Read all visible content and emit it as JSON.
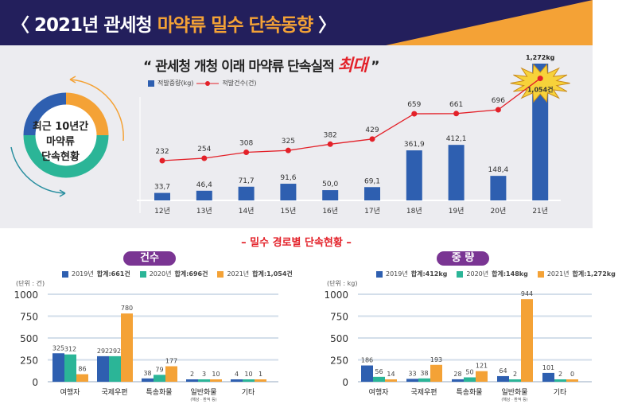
{
  "header": {
    "title_prefix": "〈 2021년 관세청 ",
    "title_highlight": "마약류 밀수 단속동향",
    "title_suffix": " 〉",
    "colors": {
      "navy": "#231f5c",
      "orange": "#f4a236"
    }
  },
  "top": {
    "quote_prefix": "“ 관세청 개청 이래 마약류 단속실적 ",
    "quote_highlight": "최대",
    "quote_suffix": " ”",
    "ring_lines": [
      "최근 10년간",
      "마약류",
      "단속현황"
    ],
    "legend": {
      "bar": "적발중량(kg)",
      "line": "적발건수(건)"
    },
    "burst_label": "1,054건",
    "top_bar_label": "1,272kg"
  },
  "chart_data": [
    {
      "type": "bar+line",
      "categories": [
        "12년",
        "13년",
        "14년",
        "15년",
        "16년",
        "17년",
        "18년",
        "19년",
        "20년",
        "21년"
      ],
      "series": [
        {
          "name": "적발중량(kg)",
          "type": "bar",
          "color": "#2e5fb0",
          "values": [
            33.7,
            46.4,
            71.7,
            91.6,
            50.0,
            69.1,
            361.9,
            412.1,
            148.4,
            1272
          ],
          "labels": [
            "33,7",
            "46,4",
            "71,7",
            "91,6",
            "50,0",
            "69,1",
            "361,9",
            "412,1",
            "148,4",
            "1,272kg"
          ]
        },
        {
          "name": "적발건수(건)",
          "type": "line",
          "color": "#e32129",
          "values": [
            232,
            254,
            308,
            325,
            382,
            429,
            659,
            661,
            696,
            1054
          ],
          "labels": [
            "232",
            "254",
            "308",
            "325",
            "382",
            "429",
            "659",
            "661",
            "696",
            "1,054건"
          ]
        }
      ]
    },
    {
      "type": "bar",
      "title": "건수",
      "unit": "(단위 : 건)",
      "ylim": [
        0,
        1000
      ],
      "yticks": [
        "0",
        "250",
        "500",
        "750",
        "1000"
      ],
      "grid": true,
      "categories": [
        "여행자",
        "국제우편",
        "특송화물",
        "일반화물",
        "기타"
      ],
      "category_notes": [
        "",
        "",
        "",
        "(해상 · 환적 등)",
        ""
      ],
      "series": [
        {
          "name": "2019년",
          "total": "합계:661건",
          "color": "#2e5fb0",
          "values": [
            325,
            292,
            38,
            2,
            4
          ]
        },
        {
          "name": "2020년",
          "total": "합계:696건",
          "color": "#2bb597",
          "values": [
            312,
            292,
            79,
            3,
            10
          ]
        },
        {
          "name": "2021년",
          "total": "합계:1,054건",
          "color": "#f4a236",
          "values": [
            86,
            780,
            177,
            10,
            1
          ]
        }
      ]
    },
    {
      "type": "bar",
      "title": "중 량",
      "unit": "(단위 : kg)",
      "ylim": [
        0,
        1000
      ],
      "yticks": [
        "0",
        "250",
        "500",
        "750",
        "1000"
      ],
      "grid": true,
      "categories": [
        "여행자",
        "국제우편",
        "특송화물",
        "일반화물",
        "기타"
      ],
      "category_notes": [
        "",
        "",
        "",
        "(해상 · 환적 등)",
        ""
      ],
      "series": [
        {
          "name": "2019년",
          "total": "합계:412kg",
          "color": "#2e5fb0",
          "values": [
            186,
            33,
            28,
            64,
            101
          ]
        },
        {
          "name": "2020년",
          "total": "합계:148kg",
          "color": "#2bb597",
          "values": [
            56,
            38,
            50,
            2,
            2
          ]
        },
        {
          "name": "2021년",
          "total": "합계:1,272kg",
          "color": "#f4a236",
          "values": [
            14,
            193,
            121,
            944,
            0
          ]
        }
      ]
    }
  ],
  "bottom": {
    "subtitle": "– 밀수 경로별 단속현황 –"
  }
}
